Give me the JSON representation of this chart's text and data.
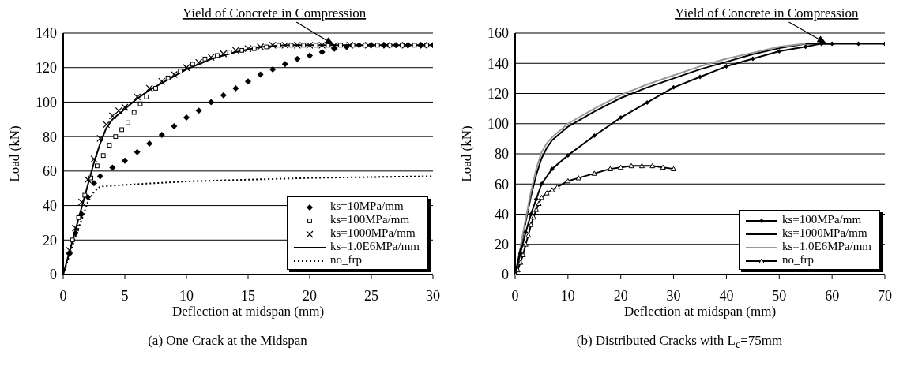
{
  "chart_data": [
    {
      "type": "line",
      "xlabel": "Deflection at midspan (mm)",
      "ylabel": "Load (kN)",
      "xlim": [
        0,
        30
      ],
      "xticks": [
        0,
        5,
        10,
        15,
        20,
        25,
        30
      ],
      "ylim": [
        0,
        140
      ],
      "yticks": [
        0,
        20,
        40,
        60,
        80,
        100,
        120,
        140
      ],
      "grid": "y",
      "legend": "bottom right",
      "annotations": [
        {
          "text": "Yield of Concrete in Compression",
          "x": 22,
          "y": 133
        },
        "(a) One Crack at the Midspan"
      ],
      "series": [
        {
          "name": "ks=10MPa/mm",
          "type": "scatter",
          "marker": "diamond",
          "color": "#000000",
          "x": [
            0.5,
            1,
            1.5,
            2,
            2.5,
            3,
            4,
            5,
            6,
            7,
            8,
            9,
            10,
            11,
            12,
            13,
            14,
            15,
            16,
            17,
            18,
            19,
            20,
            21,
            22,
            23,
            24,
            25,
            26,
            27,
            28,
            29,
            30
          ],
          "values": [
            12,
            24,
            35,
            45,
            53,
            57,
            62,
            66,
            71,
            76,
            81,
            86,
            91,
            95,
            100,
            104,
            108,
            112,
            116,
            119,
            122,
            125,
            127,
            129,
            131,
            132,
            133,
            133,
            133,
            133,
            133,
            133,
            133
          ]
        },
        {
          "name": "ks=100MPa/mm",
          "type": "scatter",
          "marker": "square",
          "color": "#000000",
          "x": [
            0.75,
            1.25,
            1.75,
            2.25,
            2.75,
            3.25,
            3.75,
            4.25,
            4.75,
            5.25,
            5.75,
            6.25,
            6.75,
            7.5,
            8.5,
            9.5,
            10.5,
            11.5,
            12.5,
            13.5,
            14.5,
            15.5,
            16.5,
            17.5,
            18.5,
            19.5,
            20.5,
            21.5,
            22.5,
            23.5,
            24.5,
            25.5,
            26.5,
            27.5,
            28.5,
            29.5
          ],
          "values": [
            20,
            33,
            46,
            56,
            63,
            69,
            75,
            80,
            84,
            88,
            94,
            99,
            103,
            108,
            114,
            118,
            122,
            125,
            127,
            129,
            130,
            131,
            132,
            133,
            133,
            133,
            133,
            133,
            133,
            133,
            133,
            133,
            133,
            133,
            133,
            133
          ]
        },
        {
          "name": "ks=1000MPa/mm",
          "type": "scatter",
          "marker": "cross",
          "color": "#000000",
          "x": [
            0.5,
            1,
            1.5,
            2,
            2.5,
            3,
            3.5,
            4,
            4.5,
            5,
            6,
            7,
            8,
            9,
            10,
            11,
            12,
            13,
            14,
            15,
            16,
            17,
            18,
            19,
            20,
            21,
            22,
            23.25,
            24.75,
            26.25,
            27.75,
            29.25
          ],
          "values": [
            14,
            27,
            42,
            55,
            67,
            79,
            87,
            92,
            95,
            97,
            103,
            108,
            112,
            116,
            120,
            123,
            126,
            128,
            130,
            131,
            132,
            133,
            133,
            133,
            133,
            133,
            133,
            133,
            133,
            133,
            133,
            133
          ]
        },
        {
          "name": "ks=1.0E6MPa/mm",
          "marker": "none",
          "line_style": "solid",
          "color": "#000000",
          "x": [
            0,
            1,
            2,
            2.5,
            3,
            3.5,
            4,
            5,
            6,
            7,
            8,
            10,
            12,
            14,
            16,
            18,
            20,
            22,
            30
          ],
          "values": [
            0,
            26,
            52,
            65,
            76,
            85,
            90,
            96,
            102,
            107,
            111,
            119,
            125,
            129,
            132,
            133,
            133,
            133,
            133
          ]
        },
        {
          "name": "no_frp",
          "marker": "none",
          "line_style": "dotted",
          "color": "#000000",
          "x": [
            0,
            1,
            2,
            2.5,
            3,
            5,
            10,
            15,
            20,
            25,
            30
          ],
          "values": [
            0,
            22,
            42,
            48,
            51,
            52,
            54,
            55,
            56,
            56.5,
            57
          ]
        }
      ]
    },
    {
      "type": "line",
      "xlabel": "Deflection at midspan (mm)",
      "ylabel": "Load (kN)",
      "xlim": [
        0,
        70
      ],
      "xticks": [
        0,
        10,
        20,
        30,
        40,
        50,
        60,
        70
      ],
      "ylim": [
        0,
        160
      ],
      "yticks": [
        0,
        20,
        40,
        60,
        80,
        100,
        120,
        140,
        160
      ],
      "grid": "y",
      "legend": "bottom right",
      "annotations": [
        {
          "text": "Yield of Concrete in Compression",
          "x": 59,
          "y": 153
        },
        "(b) Distributed Cracks with L$_{c}$=75mm"
      ],
      "series": [
        {
          "name": "ks=100MPa/mm",
          "marker": "diamond",
          "line_style": "solid",
          "color": "#000000",
          "x": [
            0,
            1,
            2,
            3,
            4,
            5,
            7,
            10,
            15,
            20,
            25,
            30,
            35,
            40,
            45,
            50,
            55,
            58,
            60,
            65,
            70
          ],
          "values": [
            0,
            14,
            28,
            40,
            50,
            60,
            70,
            79,
            92,
            104,
            114,
            124,
            131,
            138,
            143,
            148,
            151,
            153,
            153,
            153,
            153
          ]
        },
        {
          "name": "ks=1000MPa/mm",
          "marker": "none",
          "line_style": "solid",
          "color": "#000000",
          "x": [
            0,
            1,
            2,
            3,
            4,
            5,
            6,
            7,
            10,
            15,
            20,
            25,
            30,
            35,
            40,
            45,
            50,
            55,
            60
          ],
          "values": [
            0,
            17,
            35,
            52,
            66,
            77,
            84,
            89,
            98,
            108,
            117,
            124,
            130,
            136,
            141,
            146,
            150,
            153,
            153
          ]
        },
        {
          "name": "ks=1.0E6MPa/mm",
          "marker": "none",
          "line_style": "solid",
          "color": "#999999",
          "x": [
            1,
            2,
            3,
            4,
            5,
            6,
            7,
            10,
            15,
            20,
            25,
            30,
            35,
            40,
            45,
            50,
            55
          ],
          "values": [
            18,
            37,
            55,
            70,
            81,
            87,
            91,
            100,
            110,
            119,
            126,
            132,
            138,
            143,
            147,
            151,
            153
          ]
        },
        {
          "name": "no_frp",
          "marker": "triangle",
          "line_style": "solid",
          "color": "#000000",
          "x": [
            0,
            0.5,
            1,
            1.5,
            2,
            2.5,
            3,
            3.5,
            4,
            4.5,
            5,
            6,
            7,
            8,
            10,
            12,
            15,
            18,
            20,
            22,
            24,
            26,
            28,
            30
          ],
          "values": [
            0,
            3,
            8,
            13,
            20,
            26,
            33,
            38,
            43,
            47,
            51,
            54,
            56,
            58,
            62,
            64,
            67,
            70,
            71,
            72,
            72,
            72,
            71,
            70
          ]
        }
      ]
    }
  ]
}
